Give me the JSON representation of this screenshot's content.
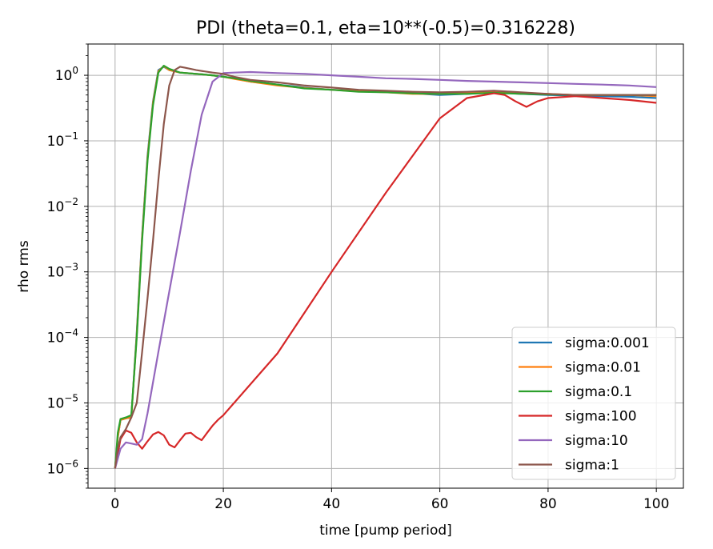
{
  "chart_data": {
    "type": "line",
    "title": "PDI (theta=0.1, eta=10**(-0.5)=0.316228)",
    "xlabel": "time [pump period]",
    "ylabel": "rho rms",
    "xlim": [
      -5,
      105
    ],
    "ylim": [
      5e-07,
      3
    ],
    "yscale": "log",
    "grid": true,
    "legend_position": "lower right",
    "xticks": [
      {
        "value": 0,
        "label": "0"
      },
      {
        "value": 20,
        "label": "20"
      },
      {
        "value": 40,
        "label": "40"
      },
      {
        "value": 60,
        "label": "60"
      },
      {
        "value": 80,
        "label": "80"
      },
      {
        "value": 100,
        "label": "100"
      }
    ],
    "yticks": [
      {
        "value": 1e-06,
        "base": "10",
        "exp": "−6"
      },
      {
        "value": 1e-05,
        "base": "10",
        "exp": "−5"
      },
      {
        "value": 0.0001,
        "base": "10",
        "exp": "−4"
      },
      {
        "value": 0.001,
        "base": "10",
        "exp": "−3"
      },
      {
        "value": 0.01,
        "base": "10",
        "exp": "−2"
      },
      {
        "value": 0.1,
        "base": "10",
        "exp": "−1"
      },
      {
        "value": 1,
        "base": "10",
        "exp": "0"
      }
    ],
    "series": [
      {
        "name": "sigma:0.001",
        "color": "#1f77b4",
        "points": [
          [
            0,
            1e-06
          ],
          [
            0.5,
            3e-06
          ],
          [
            1,
            5.5e-06
          ],
          [
            2,
            5.8e-06
          ],
          [
            3,
            6e-06
          ],
          [
            4,
            0.00012
          ],
          [
            5,
            0.0036
          ],
          [
            6,
            0.06
          ],
          [
            7,
            0.4
          ],
          [
            8,
            1.2
          ],
          [
            9,
            1.35
          ],
          [
            10,
            1.2
          ],
          [
            12,
            1.1
          ],
          [
            15,
            1.05
          ],
          [
            18,
            1.0
          ],
          [
            20,
            0.95
          ],
          [
            22,
            0.9
          ],
          [
            25,
            0.8
          ],
          [
            30,
            0.72
          ],
          [
            35,
            0.65
          ],
          [
            40,
            0.6
          ],
          [
            45,
            0.58
          ],
          [
            50,
            0.56
          ],
          [
            55,
            0.53
          ],
          [
            60,
            0.5
          ],
          [
            65,
            0.52
          ],
          [
            70,
            0.55
          ],
          [
            75,
            0.52
          ],
          [
            80,
            0.5
          ],
          [
            85,
            0.49
          ],
          [
            90,
            0.48
          ],
          [
            95,
            0.47
          ],
          [
            100,
            0.45
          ]
        ]
      },
      {
        "name": "sigma:0.01",
        "color": "#ff7f0e",
        "points": [
          [
            0,
            1e-06
          ],
          [
            0.5,
            3e-06
          ],
          [
            1,
            5.5e-06
          ],
          [
            2,
            5.8e-06
          ],
          [
            3,
            6e-06
          ],
          [
            4,
            0.00011
          ],
          [
            5,
            0.0034
          ],
          [
            6,
            0.055
          ],
          [
            7,
            0.38
          ],
          [
            8,
            1.15
          ],
          [
            9,
            1.38
          ],
          [
            10,
            1.2
          ],
          [
            12,
            1.1
          ],
          [
            15,
            1.05
          ],
          [
            18,
            1.0
          ],
          [
            20,
            0.95
          ],
          [
            22,
            0.88
          ],
          [
            25,
            0.8
          ],
          [
            30,
            0.7
          ],
          [
            35,
            0.64
          ],
          [
            40,
            0.6
          ],
          [
            45,
            0.57
          ],
          [
            50,
            0.55
          ],
          [
            55,
            0.52
          ],
          [
            60,
            0.52
          ],
          [
            65,
            0.54
          ],
          [
            70,
            0.56
          ],
          [
            75,
            0.53
          ],
          [
            80,
            0.52
          ],
          [
            85,
            0.5
          ],
          [
            90,
            0.5
          ],
          [
            95,
            0.5
          ],
          [
            100,
            0.48
          ]
        ]
      },
      {
        "name": "sigma:0.1",
        "color": "#2ca02c",
        "points": [
          [
            0,
            1e-06
          ],
          [
            0.5,
            3.5e-06
          ],
          [
            1,
            5.7e-06
          ],
          [
            2,
            6e-06
          ],
          [
            3,
            6.5e-06
          ],
          [
            4,
            0.0001
          ],
          [
            5,
            0.003
          ],
          [
            6,
            0.05
          ],
          [
            7,
            0.35
          ],
          [
            8,
            1.1
          ],
          [
            9,
            1.4
          ],
          [
            10,
            1.25
          ],
          [
            12,
            1.1
          ],
          [
            15,
            1.05
          ],
          [
            18,
            1.0
          ],
          [
            20,
            0.95
          ],
          [
            22,
            0.9
          ],
          [
            25,
            0.82
          ],
          [
            30,
            0.72
          ],
          [
            35,
            0.63
          ],
          [
            40,
            0.6
          ],
          [
            45,
            0.56
          ],
          [
            50,
            0.55
          ],
          [
            55,
            0.53
          ],
          [
            60,
            0.52
          ],
          [
            65,
            0.52
          ],
          [
            70,
            0.54
          ],
          [
            75,
            0.52
          ],
          [
            80,
            0.51
          ],
          [
            85,
            0.5
          ],
          [
            90,
            0.5
          ],
          [
            95,
            0.5
          ],
          [
            100,
            0.5
          ]
        ]
      },
      {
        "name": "sigma:100",
        "color": "#d62728",
        "points": [
          [
            0,
            1e-06
          ],
          [
            1,
            2.8e-06
          ],
          [
            2,
            3.8e-06
          ],
          [
            3,
            3.5e-06
          ],
          [
            4,
            2.5e-06
          ],
          [
            5,
            2e-06
          ],
          [
            6,
            2.6e-06
          ],
          [
            7,
            3.3e-06
          ],
          [
            8,
            3.6e-06
          ],
          [
            9,
            3.2e-06
          ],
          [
            10,
            2.3e-06
          ],
          [
            11,
            2.1e-06
          ],
          [
            12,
            2.7e-06
          ],
          [
            13,
            3.4e-06
          ],
          [
            14,
            3.5e-06
          ],
          [
            15,
            3e-06
          ],
          [
            16,
            2.7e-06
          ],
          [
            17,
            3.5e-06
          ],
          [
            18,
            4.5e-06
          ],
          [
            19,
            5.5e-06
          ],
          [
            20,
            6.5e-06
          ],
          [
            30,
            5.7e-05
          ],
          [
            40,
            0.001
          ],
          [
            50,
            0.016
          ],
          [
            60,
            0.22
          ],
          [
            65,
            0.45
          ],
          [
            70,
            0.53
          ],
          [
            72,
            0.5
          ],
          [
            74,
            0.4
          ],
          [
            76,
            0.33
          ],
          [
            78,
            0.4
          ],
          [
            80,
            0.45
          ],
          [
            85,
            0.48
          ],
          [
            90,
            0.45
          ],
          [
            95,
            0.42
          ],
          [
            100,
            0.38
          ]
        ]
      },
      {
        "name": "sigma:10",
        "color": "#9467bd",
        "points": [
          [
            0,
            1e-06
          ],
          [
            1,
            2e-06
          ],
          [
            2,
            2.5e-06
          ],
          [
            3,
            2.4e-06
          ],
          [
            4,
            2.3e-06
          ],
          [
            5,
            2.8e-06
          ],
          [
            6,
            7e-06
          ],
          [
            8,
            6e-05
          ],
          [
            10,
            0.0005
          ],
          [
            12,
            0.004
          ],
          [
            14,
            0.035
          ],
          [
            16,
            0.25
          ],
          [
            18,
            0.8
          ],
          [
            20,
            1.08
          ],
          [
            22,
            1.1
          ],
          [
            25,
            1.12
          ],
          [
            30,
            1.08
          ],
          [
            35,
            1.05
          ],
          [
            40,
            1.0
          ],
          [
            45,
            0.95
          ],
          [
            50,
            0.9
          ],
          [
            55,
            0.88
          ],
          [
            60,
            0.85
          ],
          [
            65,
            0.82
          ],
          [
            70,
            0.8
          ],
          [
            75,
            0.78
          ],
          [
            80,
            0.76
          ],
          [
            85,
            0.74
          ],
          [
            90,
            0.72
          ],
          [
            95,
            0.7
          ],
          [
            100,
            0.66
          ]
        ]
      },
      {
        "name": "sigma:1",
        "color": "#8c564b",
        "points": [
          [
            0,
            1e-06
          ],
          [
            0.5,
            2e-06
          ],
          [
            1,
            3e-06
          ],
          [
            2,
            4e-06
          ],
          [
            3,
            6e-06
          ],
          [
            4,
            1e-05
          ],
          [
            5,
            6e-05
          ],
          [
            6,
            0.0004
          ],
          [
            7,
            0.003
          ],
          [
            8,
            0.025
          ],
          [
            9,
            0.18
          ],
          [
            10,
            0.7
          ],
          [
            11,
            1.2
          ],
          [
            12,
            1.35
          ],
          [
            13,
            1.3
          ],
          [
            15,
            1.2
          ],
          [
            18,
            1.1
          ],
          [
            20,
            1.05
          ],
          [
            22,
            0.95
          ],
          [
            25,
            0.85
          ],
          [
            30,
            0.78
          ],
          [
            35,
            0.7
          ],
          [
            40,
            0.65
          ],
          [
            45,
            0.6
          ],
          [
            50,
            0.58
          ],
          [
            55,
            0.56
          ],
          [
            60,
            0.55
          ],
          [
            65,
            0.56
          ],
          [
            70,
            0.58
          ],
          [
            75,
            0.55
          ],
          [
            80,
            0.52
          ],
          [
            85,
            0.5
          ],
          [
            90,
            0.5
          ],
          [
            95,
            0.5
          ],
          [
            100,
            0.5
          ]
        ]
      }
    ]
  }
}
